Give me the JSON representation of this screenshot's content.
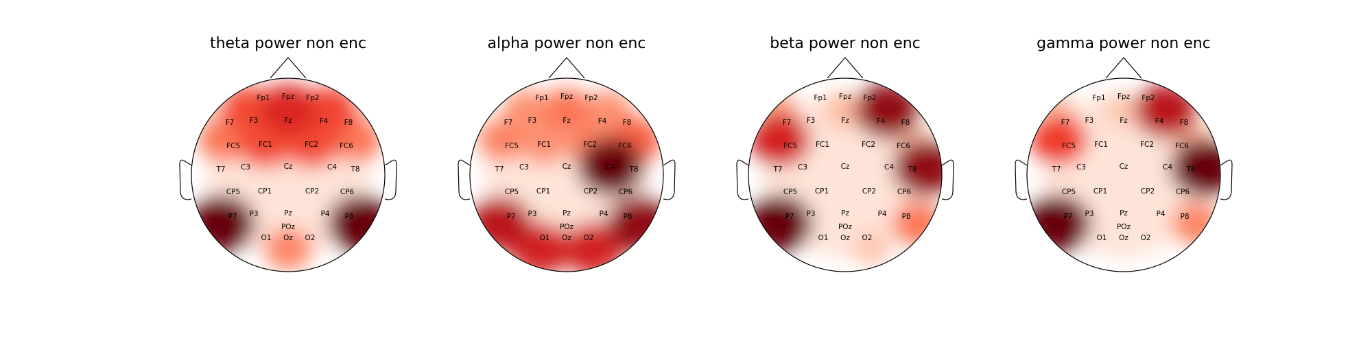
{
  "chart_data": [
    {
      "type": "heatmap",
      "title": "theta power non enc",
      "colormap": "Reds",
      "peaks": {
        "P7": 1.0,
        "P8": 1.0,
        "Oz": 0.5,
        "Fz": 0.82,
        "FC1": 0.7,
        "F4": 0.72,
        "F3": 0.7,
        "FC2": 0.7,
        "FC5": 0.55,
        "FC6": 0.55,
        "F7": 0.2,
        "F8": 0.2
      }
    },
    {
      "type": "heatmap",
      "title": "alpha power non enc",
      "colormap": "Reds",
      "peaks": {
        "P7": 0.9,
        "O1": 0.85,
        "Oz": 0.3,
        "O2": 0.85,
        "P8": 0.95,
        "C4": 1.0,
        "FC6": 0.62,
        "Fz": 0.55,
        "F3": 0.45,
        "F4": 0.45,
        "FC5": 0.5,
        "FC1": 0.45,
        "FC2": 0.5
      }
    },
    {
      "type": "heatmap",
      "title": "beta power non enc",
      "colormap": "Reds",
      "peaks": {
        "P7": 1.0,
        "T8": 0.95,
        "F4": 0.95,
        "FC5": 0.85,
        "F7": 0.4,
        "P8": 0.55,
        "O2": 0.25,
        "FC6": 0.25,
        "Fz": 0.3
      }
    },
    {
      "type": "heatmap",
      "title": "gamma power non enc",
      "colormap": "Reds",
      "peaks": {
        "P7": 1.0,
        "T8": 1.0,
        "F4": 0.9,
        "FC5": 0.75,
        "P8": 0.5,
        "F7": 0.3,
        "FC6": 0.3,
        "Fz": 0.25
      }
    }
  ],
  "channels": [
    "Fp1",
    "Fpz",
    "Fp2",
    "F7",
    "F3",
    "Fz",
    "F4",
    "F8",
    "FC5",
    "FC1",
    "FC2",
    "FC6",
    "T7",
    "C3",
    "Cz",
    "C4",
    "T8",
    "CP5",
    "CP1",
    "CP2",
    "CP6",
    "P7",
    "P3",
    "Pz",
    "P4",
    "P8",
    "POz",
    "O1",
    "Oz",
    "O2"
  ]
}
